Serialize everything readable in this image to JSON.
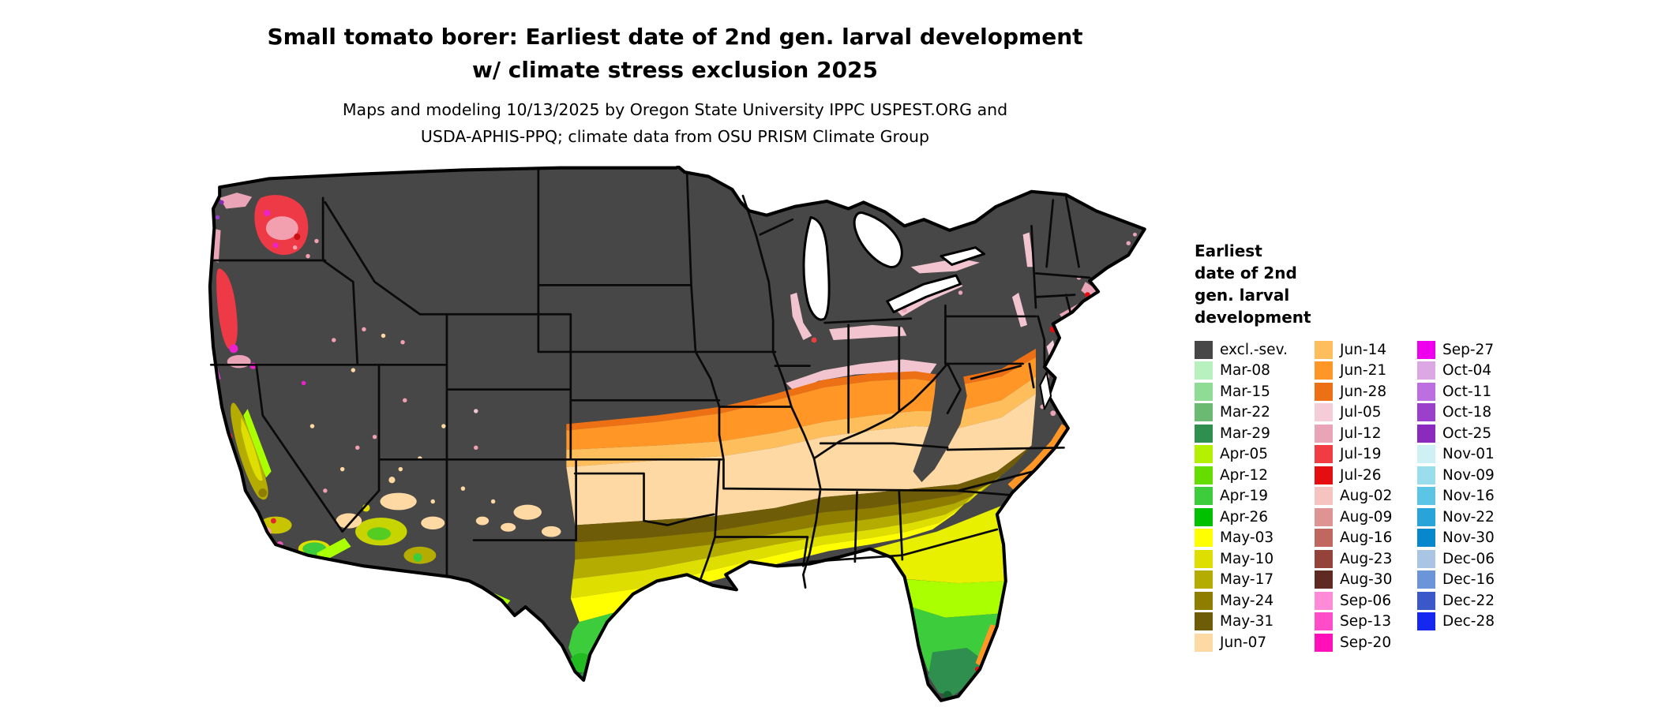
{
  "title": {
    "line1": "Small tomato borer: Earliest date of 2nd gen. larval development",
    "line2": "w/ climate stress exclusion 2025"
  },
  "subtitle": {
    "line1": "Maps and modeling 10/13/2025 by Oregon State University IPPC USPEST.ORG and",
    "line2": "USDA-APHIS-PPQ; climate data from OSU PRISM Climate Group"
  },
  "legend": {
    "title_lines": [
      "Earliest",
      "date of 2nd",
      "gen. larval",
      "development"
    ],
    "columns": [
      {
        "entries": [
          {
            "label": "excl.-sev.",
            "color": "#474747"
          },
          {
            "label": "Mar-08",
            "color": "#b9f0c0"
          },
          {
            "label": "Mar-15",
            "color": "#8edc96"
          },
          {
            "label": "Mar-22",
            "color": "#6aba74"
          },
          {
            "label": "Mar-29",
            "color": "#2f8f4e"
          },
          {
            "label": "Apr-05",
            "color": "#b4f000"
          },
          {
            "label": "Apr-12",
            "color": "#66dd00"
          },
          {
            "label": "Apr-19",
            "color": "#3ccc3c"
          },
          {
            "label": "Apr-26",
            "color": "#00c000"
          },
          {
            "label": "May-03",
            "color": "#ffff00"
          },
          {
            "label": "May-10",
            "color": "#dede00"
          },
          {
            "label": "May-17",
            "color": "#b4ac00"
          },
          {
            "label": "May-24",
            "color": "#8f7d00"
          },
          {
            "label": "May-31",
            "color": "#6f5c08"
          },
          {
            "label": "Jun-07",
            "color": "#ffd9a3"
          }
        ]
      },
      {
        "entries": [
          {
            "label": "Jun-14",
            "color": "#ffbe5c"
          },
          {
            "label": "Jun-21",
            "color": "#ff9626"
          },
          {
            "label": "Jun-28",
            "color": "#ee7014"
          },
          {
            "label": "Jul-05",
            "color": "#f6ccd8"
          },
          {
            "label": "Jul-12",
            "color": "#eaa4b8"
          },
          {
            "label": "Jul-19",
            "color": "#f23c44"
          },
          {
            "label": "Jul-26",
            "color": "#e40e10"
          },
          {
            "label": "Aug-02",
            "color": "#f6c4c0"
          },
          {
            "label": "Aug-09",
            "color": "#de9492"
          },
          {
            "label": "Aug-16",
            "color": "#c06860"
          },
          {
            "label": "Aug-23",
            "color": "#94423a"
          },
          {
            "label": "Aug-30",
            "color": "#5f2a22"
          },
          {
            "label": "Sep-06",
            "color": "#ff8ad8"
          },
          {
            "label": "Sep-13",
            "color": "#ff4cc8"
          },
          {
            "label": "Sep-20",
            "color": "#ff10b8"
          }
        ]
      },
      {
        "entries": [
          {
            "label": "Sep-27",
            "color": "#ee00ee"
          },
          {
            "label": "Oct-04",
            "color": "#dca8e4"
          },
          {
            "label": "Oct-11",
            "color": "#bb6fe0"
          },
          {
            "label": "Oct-18",
            "color": "#9a40cc"
          },
          {
            "label": "Oct-25",
            "color": "#8a2bbe"
          },
          {
            "label": "Nov-01",
            "color": "#cff0f4"
          },
          {
            "label": "Nov-09",
            "color": "#9adeee"
          },
          {
            "label": "Nov-16",
            "color": "#5cc4e4"
          },
          {
            "label": "Nov-22",
            "color": "#28a4d8"
          },
          {
            "label": "Nov-30",
            "color": "#0888cc"
          },
          {
            "label": "Dec-06",
            "color": "#aac4e4"
          },
          {
            "label": "Dec-16",
            "color": "#6c94d8"
          },
          {
            "label": "Dec-22",
            "color": "#3a58c8"
          },
          {
            "label": "Dec-28",
            "color": "#1428f0"
          }
        ]
      }
    ]
  }
}
